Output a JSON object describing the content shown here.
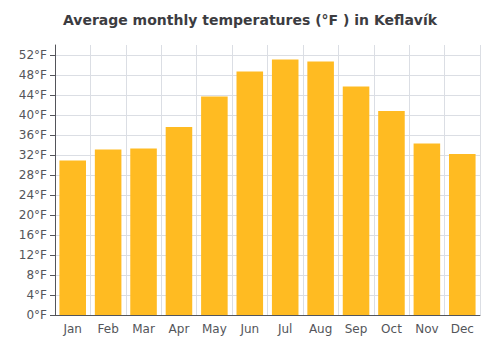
{
  "chart_data": {
    "type": "bar",
    "title": "Average monthly temperatures (°F ) in Keflavík",
    "categories": [
      "Jan",
      "Feb",
      "Mar",
      "Apr",
      "May",
      "Jun",
      "Jul",
      "Aug",
      "Sep",
      "Oct",
      "Nov",
      "Dec"
    ],
    "values": [
      30.9,
      33.1,
      33.3,
      37.6,
      43.7,
      48.7,
      51.1,
      50.7,
      45.7,
      40.8,
      34.3,
      32.2
    ],
    "color": "#FFBB22",
    "ylim": [
      0,
      54
    ],
    "yticks": [
      {
        "value": 0,
        "label": "0°F"
      },
      {
        "value": 4,
        "label": "4°F"
      },
      {
        "value": 8,
        "label": "8°F"
      },
      {
        "value": 12,
        "label": "12°F"
      },
      {
        "value": 16,
        "label": "16°F"
      },
      {
        "value": 20,
        "label": "20°F"
      },
      {
        "value": 24,
        "label": "24°F"
      },
      {
        "value": 28,
        "label": "28°F"
      },
      {
        "value": 32,
        "label": "32°F"
      },
      {
        "value": 36,
        "label": "36°F"
      },
      {
        "value": 40,
        "label": "40°F"
      },
      {
        "value": 44,
        "label": "44°F"
      },
      {
        "value": 48,
        "label": "48°F"
      },
      {
        "value": 52,
        "label": "52°F"
      }
    ],
    "grid": true
  }
}
